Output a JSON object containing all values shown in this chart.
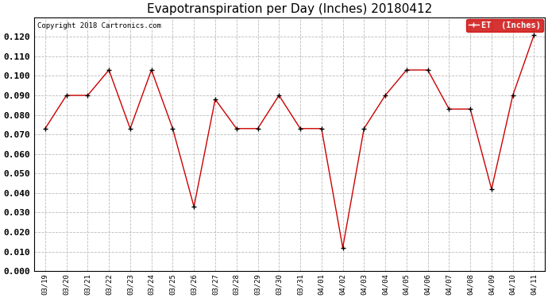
{
  "title": "Evapotranspiration per Day (Inches) 20180412",
  "copyright": "Copyright 2018 Cartronics.com",
  "legend_label": "ET  (Inches)",
  "x_labels": [
    "03/19",
    "03/20",
    "03/21",
    "03/22",
    "03/23",
    "03/24",
    "03/25",
    "03/26",
    "03/27",
    "03/28",
    "03/29",
    "03/30",
    "03/31",
    "04/01",
    "04/02",
    "04/03",
    "04/04",
    "04/05",
    "04/06",
    "04/07",
    "04/08",
    "04/09",
    "04/10",
    "04/11"
  ],
  "y_values": [
    0.073,
    0.09,
    0.09,
    0.103,
    0.073,
    0.103,
    0.073,
    0.033,
    0.088,
    0.073,
    0.073,
    0.09,
    0.073,
    0.073,
    0.012,
    0.073,
    0.09,
    0.103,
    0.103,
    0.083,
    0.083,
    0.042,
    0.09,
    0.121
  ],
  "line_color": "#cc0000",
  "marker": "+",
  "ylim": [
    0.0,
    0.13
  ],
  "ytick_min": 0.0,
  "ytick_max": 0.12,
  "ytick_step": 0.01,
  "background_color": "#ffffff",
  "grid_color": "#bbbbbb",
  "title_fontsize": 11,
  "legend_bg": "#cc0000",
  "legend_text_color": "#ffffff"
}
